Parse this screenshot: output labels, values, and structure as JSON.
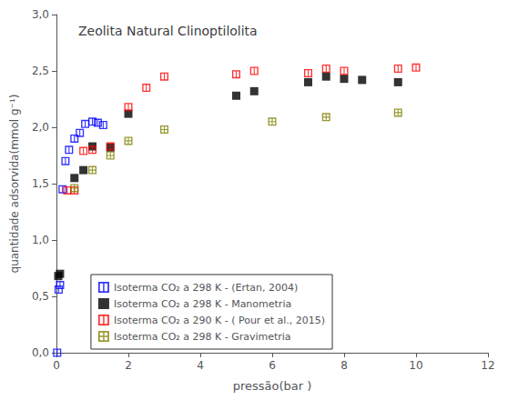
{
  "chart_data": {
    "type": "scatter",
    "title": "Zeolita Natural Clinoptilolita",
    "xlabel": "pressão(bar )",
    "ylabel": "quantidade adsorvida(mmol g⁻¹)",
    "xlim": [
      0,
      12
    ],
    "ylim": [
      0.0,
      3.0
    ],
    "xticks": [
      0,
      2,
      4,
      6,
      8,
      10,
      12
    ],
    "yticks": [
      {
        "value": 0.0,
        "label": "0,0"
      },
      {
        "value": 0.5,
        "label": "0,5"
      },
      {
        "value": 1.0,
        "label": "1,0"
      },
      {
        "value": 1.5,
        "label": "1,5"
      },
      {
        "value": 2.0,
        "label": "2,0"
      },
      {
        "value": 2.5,
        "label": "2,5"
      },
      {
        "value": 3.0,
        "label": "3,0"
      }
    ],
    "grid": false,
    "legend": "lower left",
    "series": [
      {
        "name": "Isoterma CO₂ a 298 K - (Ertan, 2004)",
        "color": "#0000FF",
        "marker": "square_vbar",
        "x": [
          0.02,
          0.06,
          0.1,
          0.17,
          0.25,
          0.35,
          0.5,
          0.65,
          0.8,
          1.0,
          1.15,
          1.3
        ],
        "values": [
          0.0,
          0.56,
          0.6,
          1.45,
          1.7,
          1.8,
          1.9,
          1.95,
          2.03,
          2.05,
          2.04,
          2.02
        ]
      },
      {
        "name": "Isoterma CO₂ a 298 K - Manometria",
        "color": "#000000",
        "marker": "square",
        "x": [
          0.05,
          0.1,
          0.5,
          0.75,
          1.0,
          1.5,
          2.0,
          5.0,
          5.5,
          7.0,
          7.5,
          8.0,
          8.5,
          9.5
        ],
        "values": [
          0.68,
          0.7,
          1.55,
          1.62,
          1.83,
          1.82,
          2.12,
          2.28,
          2.32,
          2.4,
          2.45,
          2.43,
          2.42,
          2.4
        ]
      },
      {
        "name": "Isoterma CO₂ a 290 K - ( Pour et al., 2015)",
        "color": "#FF0000",
        "marker": "square_vbar",
        "x": [
          0.3,
          0.5,
          0.75,
          1.0,
          1.5,
          2.0,
          2.5,
          3.0,
          5.0,
          5.5,
          7.0,
          7.5,
          8.0,
          9.5,
          10.0
        ],
        "values": [
          1.44,
          1.44,
          1.79,
          1.8,
          1.83,
          2.18,
          2.35,
          2.45,
          2.47,
          2.5,
          2.48,
          2.52,
          2.5,
          2.52,
          2.53
        ]
      },
      {
        "name": "Isoterma CO₂ a 298 K - Gravimetria",
        "color": "#808000",
        "marker": "square_plus",
        "x": [
          0.5,
          1.0,
          1.5,
          2.0,
          3.0,
          6.0,
          7.5,
          9.5
        ],
        "values": [
          1.46,
          1.62,
          1.75,
          1.88,
          1.98,
          2.05,
          2.09,
          2.13
        ]
      }
    ]
  }
}
